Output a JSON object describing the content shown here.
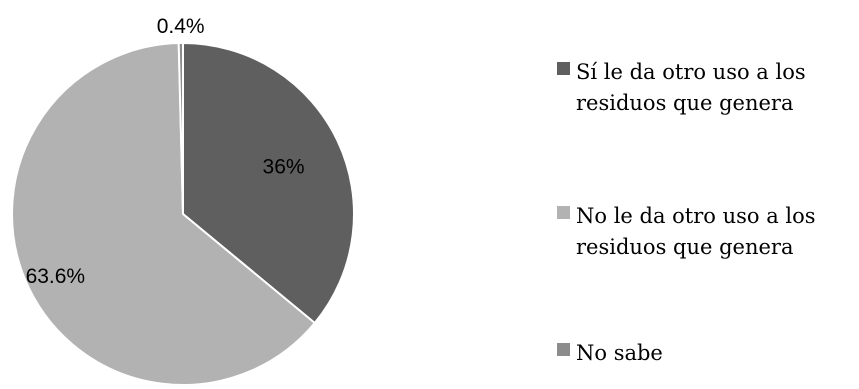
{
  "chart_data": {
    "type": "pie",
    "title": "",
    "slices": [
      {
        "label": "Sí le da otro uso a los residuos que genera",
        "legend_lines": [
          "Sí le da otro uso a los",
          "residuos que genera"
        ],
        "value": 36,
        "display": "36%",
        "color": "#5f5f5f"
      },
      {
        "label": "No le da otro uso a los residuos que genera",
        "legend_lines": [
          "No le da otro uso a los",
          "residuos que genera"
        ],
        "value": 63.6,
        "display": "63.6%",
        "color": "#b2b2b2"
      },
      {
        "label": "No sabe",
        "legend_lines": [
          "No sabe"
        ],
        "value": 0.4,
        "display": "0.4%",
        "color": "#8c8c8c"
      }
    ],
    "legend_position": "right"
  }
}
